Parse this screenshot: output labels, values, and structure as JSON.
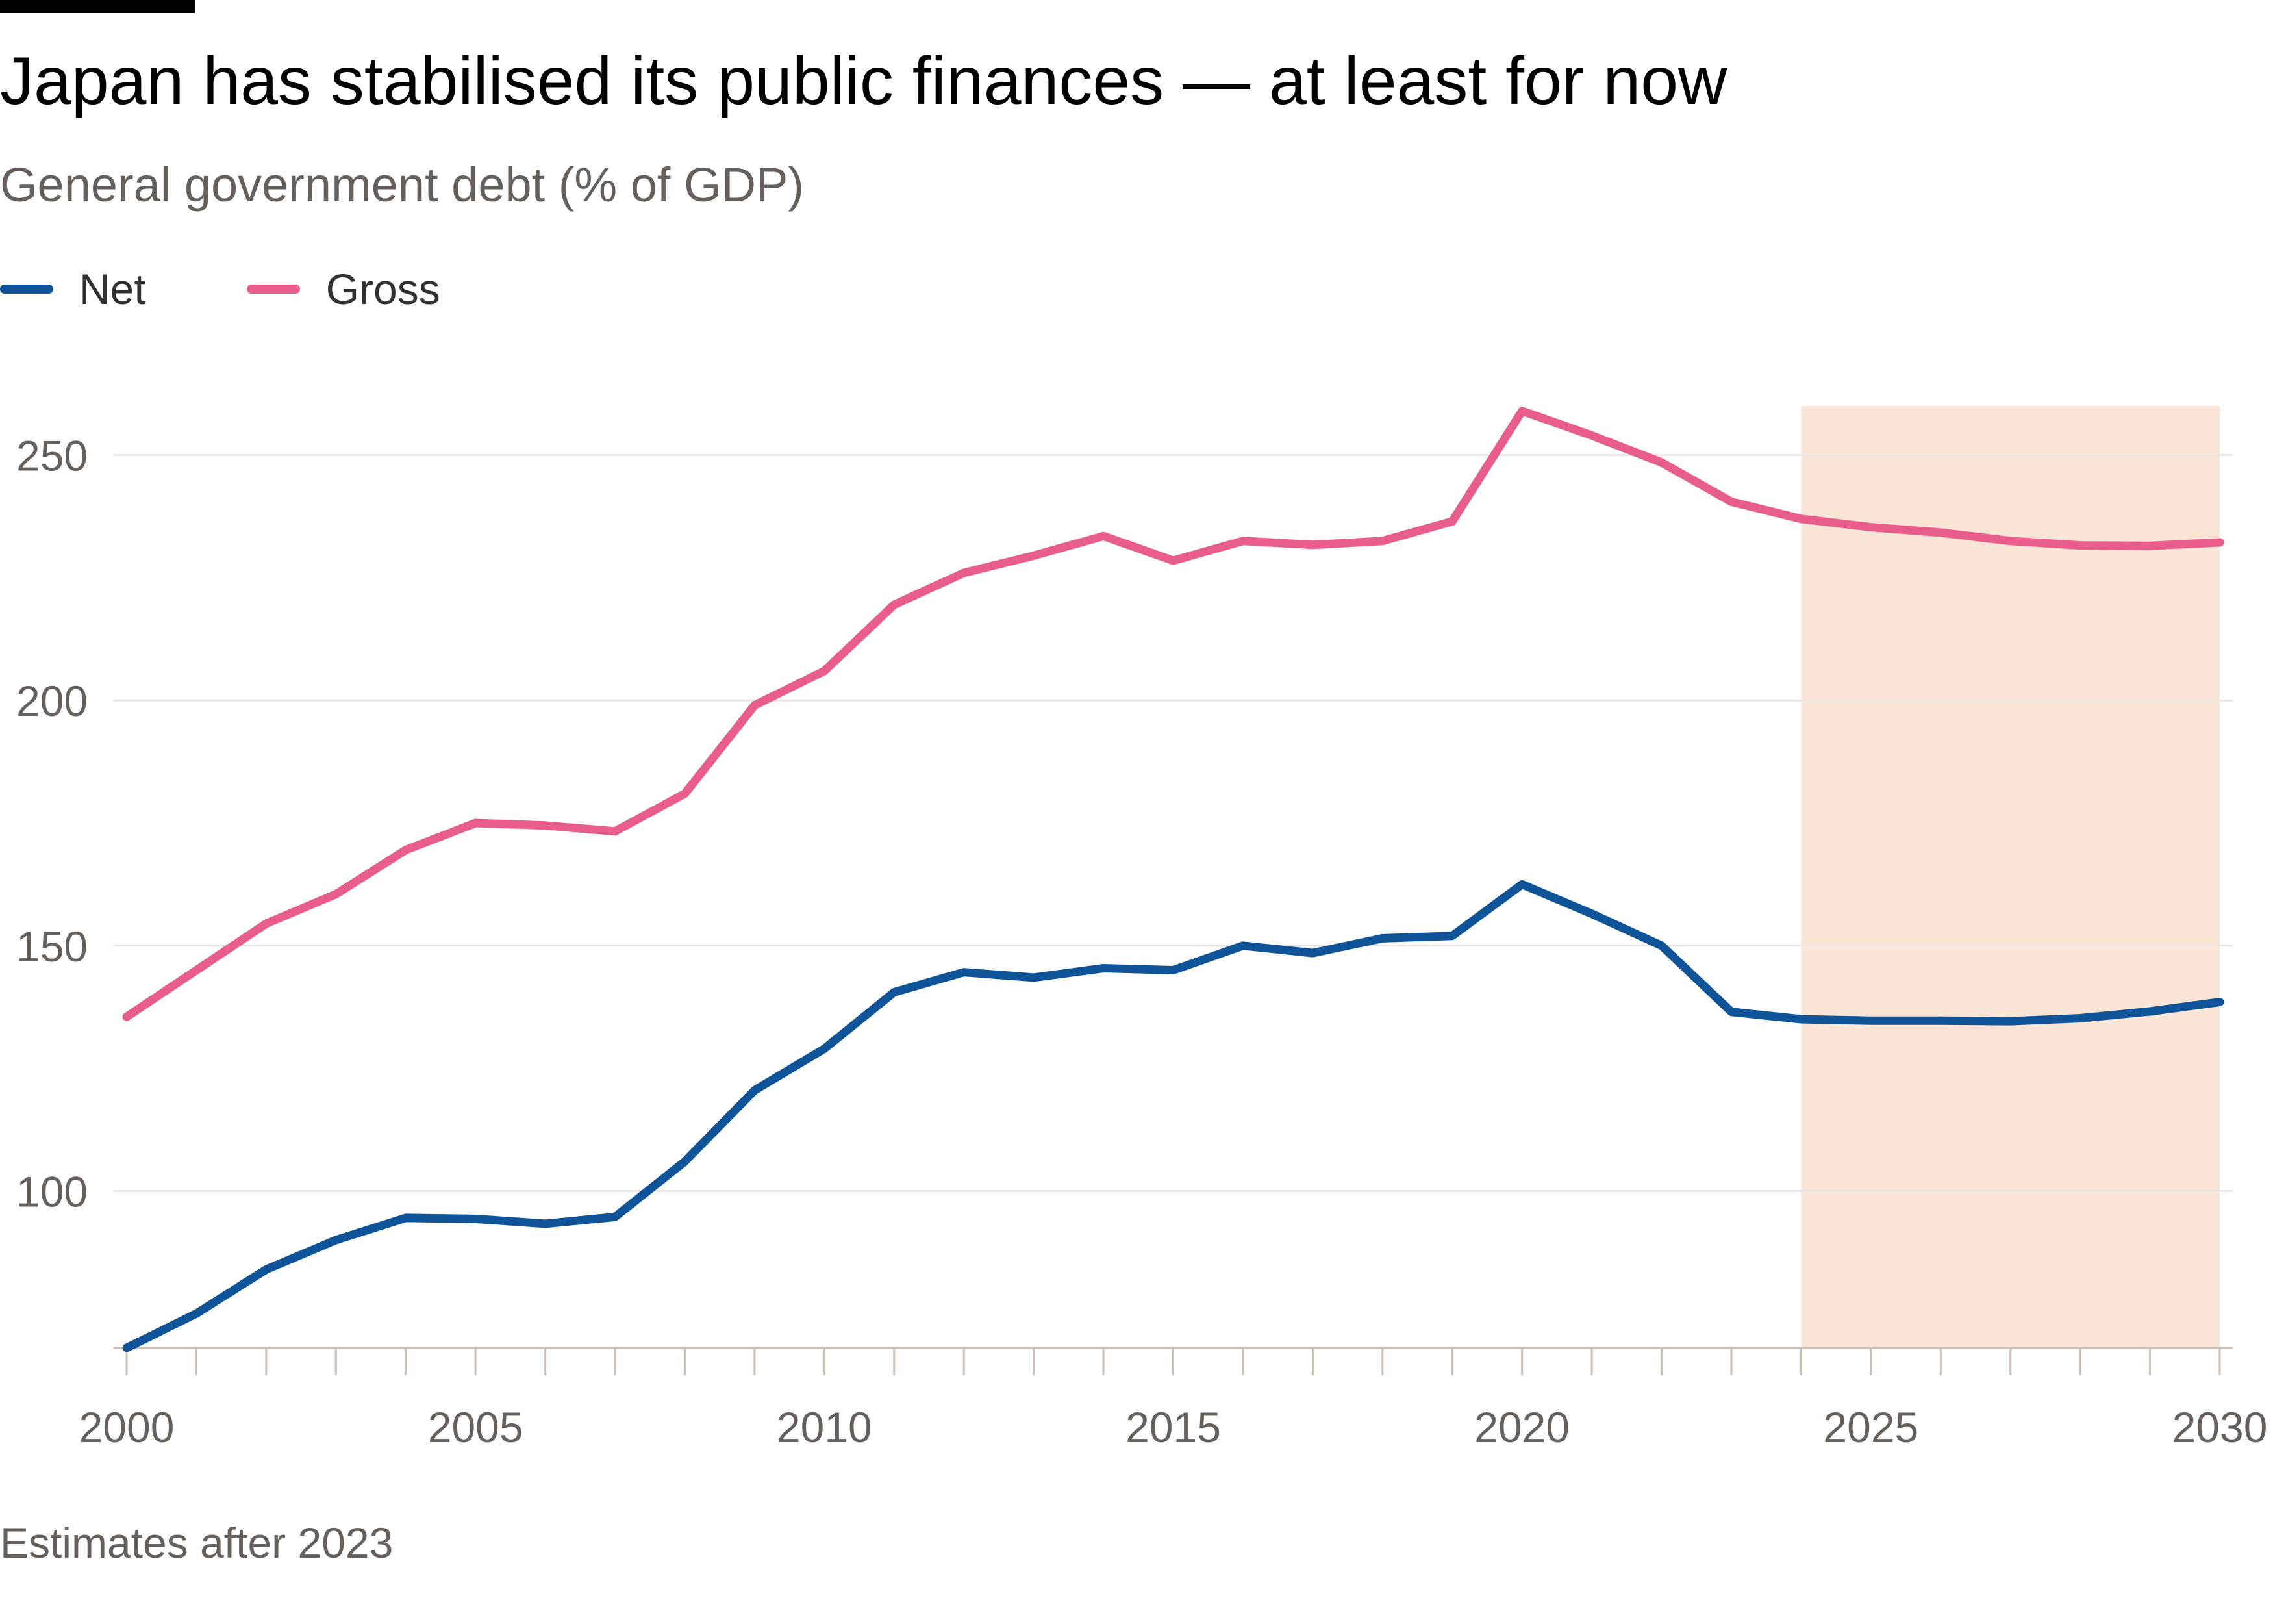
{
  "chart_data": {
    "type": "line",
    "title": "Japan has stabilised its public finances — at least for now",
    "subtitle": "General government debt (% of GDP)",
    "note": "Estimates after 2023",
    "xlabel": "",
    "ylabel": "",
    "xlim": [
      2000,
      2030
    ],
    "ylim": [
      68,
      262
    ],
    "y_ticks": [
      100,
      150,
      200,
      250
    ],
    "x_ticks": [
      2000,
      2005,
      2010,
      2015,
      2020,
      2025,
      2030
    ],
    "x_tick_labels": [
      "2000",
      "2005",
      "2010",
      "2015",
      "2020",
      "2025",
      "2030"
    ],
    "y_tick_labels": [
      "100",
      "150",
      "200",
      "250"
    ],
    "grid": true,
    "legend_position": "top-left",
    "shaded_region": {
      "x_start": 2024,
      "x_end": 2030,
      "label": "Estimates after 2023",
      "color": "#fbe5d6"
    },
    "x": [
      2000,
      2001,
      2002,
      2003,
      2004,
      2005,
      2006,
      2007,
      2008,
      2009,
      2010,
      2011,
      2012,
      2013,
      2014,
      2015,
      2016,
      2017,
      2018,
      2019,
      2020,
      2021,
      2022,
      2023,
      2024,
      2025,
      2026,
      2027,
      2028,
      2029,
      2030
    ],
    "series": [
      {
        "name": "Net",
        "color": "#0f5499",
        "values": [
          68,
          75,
          84,
          90,
          94.5,
          94.3,
          93.3,
          94.7,
          106,
          120.5,
          129,
          140.5,
          144.6,
          143.5,
          145.4,
          145,
          150,
          148.5,
          151.5,
          152,
          162.5,
          156.5,
          150,
          136.5,
          135,
          134.7,
          134.7,
          134.6,
          135.2,
          136.6,
          138.5
        ]
      },
      {
        "name": "Gross",
        "color": "#e95d8c",
        "values": [
          135.5,
          145,
          154.5,
          160.5,
          169.5,
          175,
          174.5,
          173.3,
          181,
          199,
          206,
          219.5,
          226,
          229.5,
          233.5,
          228.5,
          232.5,
          231.7,
          232.5,
          236.5,
          259,
          254,
          248.5,
          240.5,
          237,
          235.3,
          234.2,
          232.5,
          231.6,
          231.5,
          232.2
        ]
      }
    ]
  }
}
